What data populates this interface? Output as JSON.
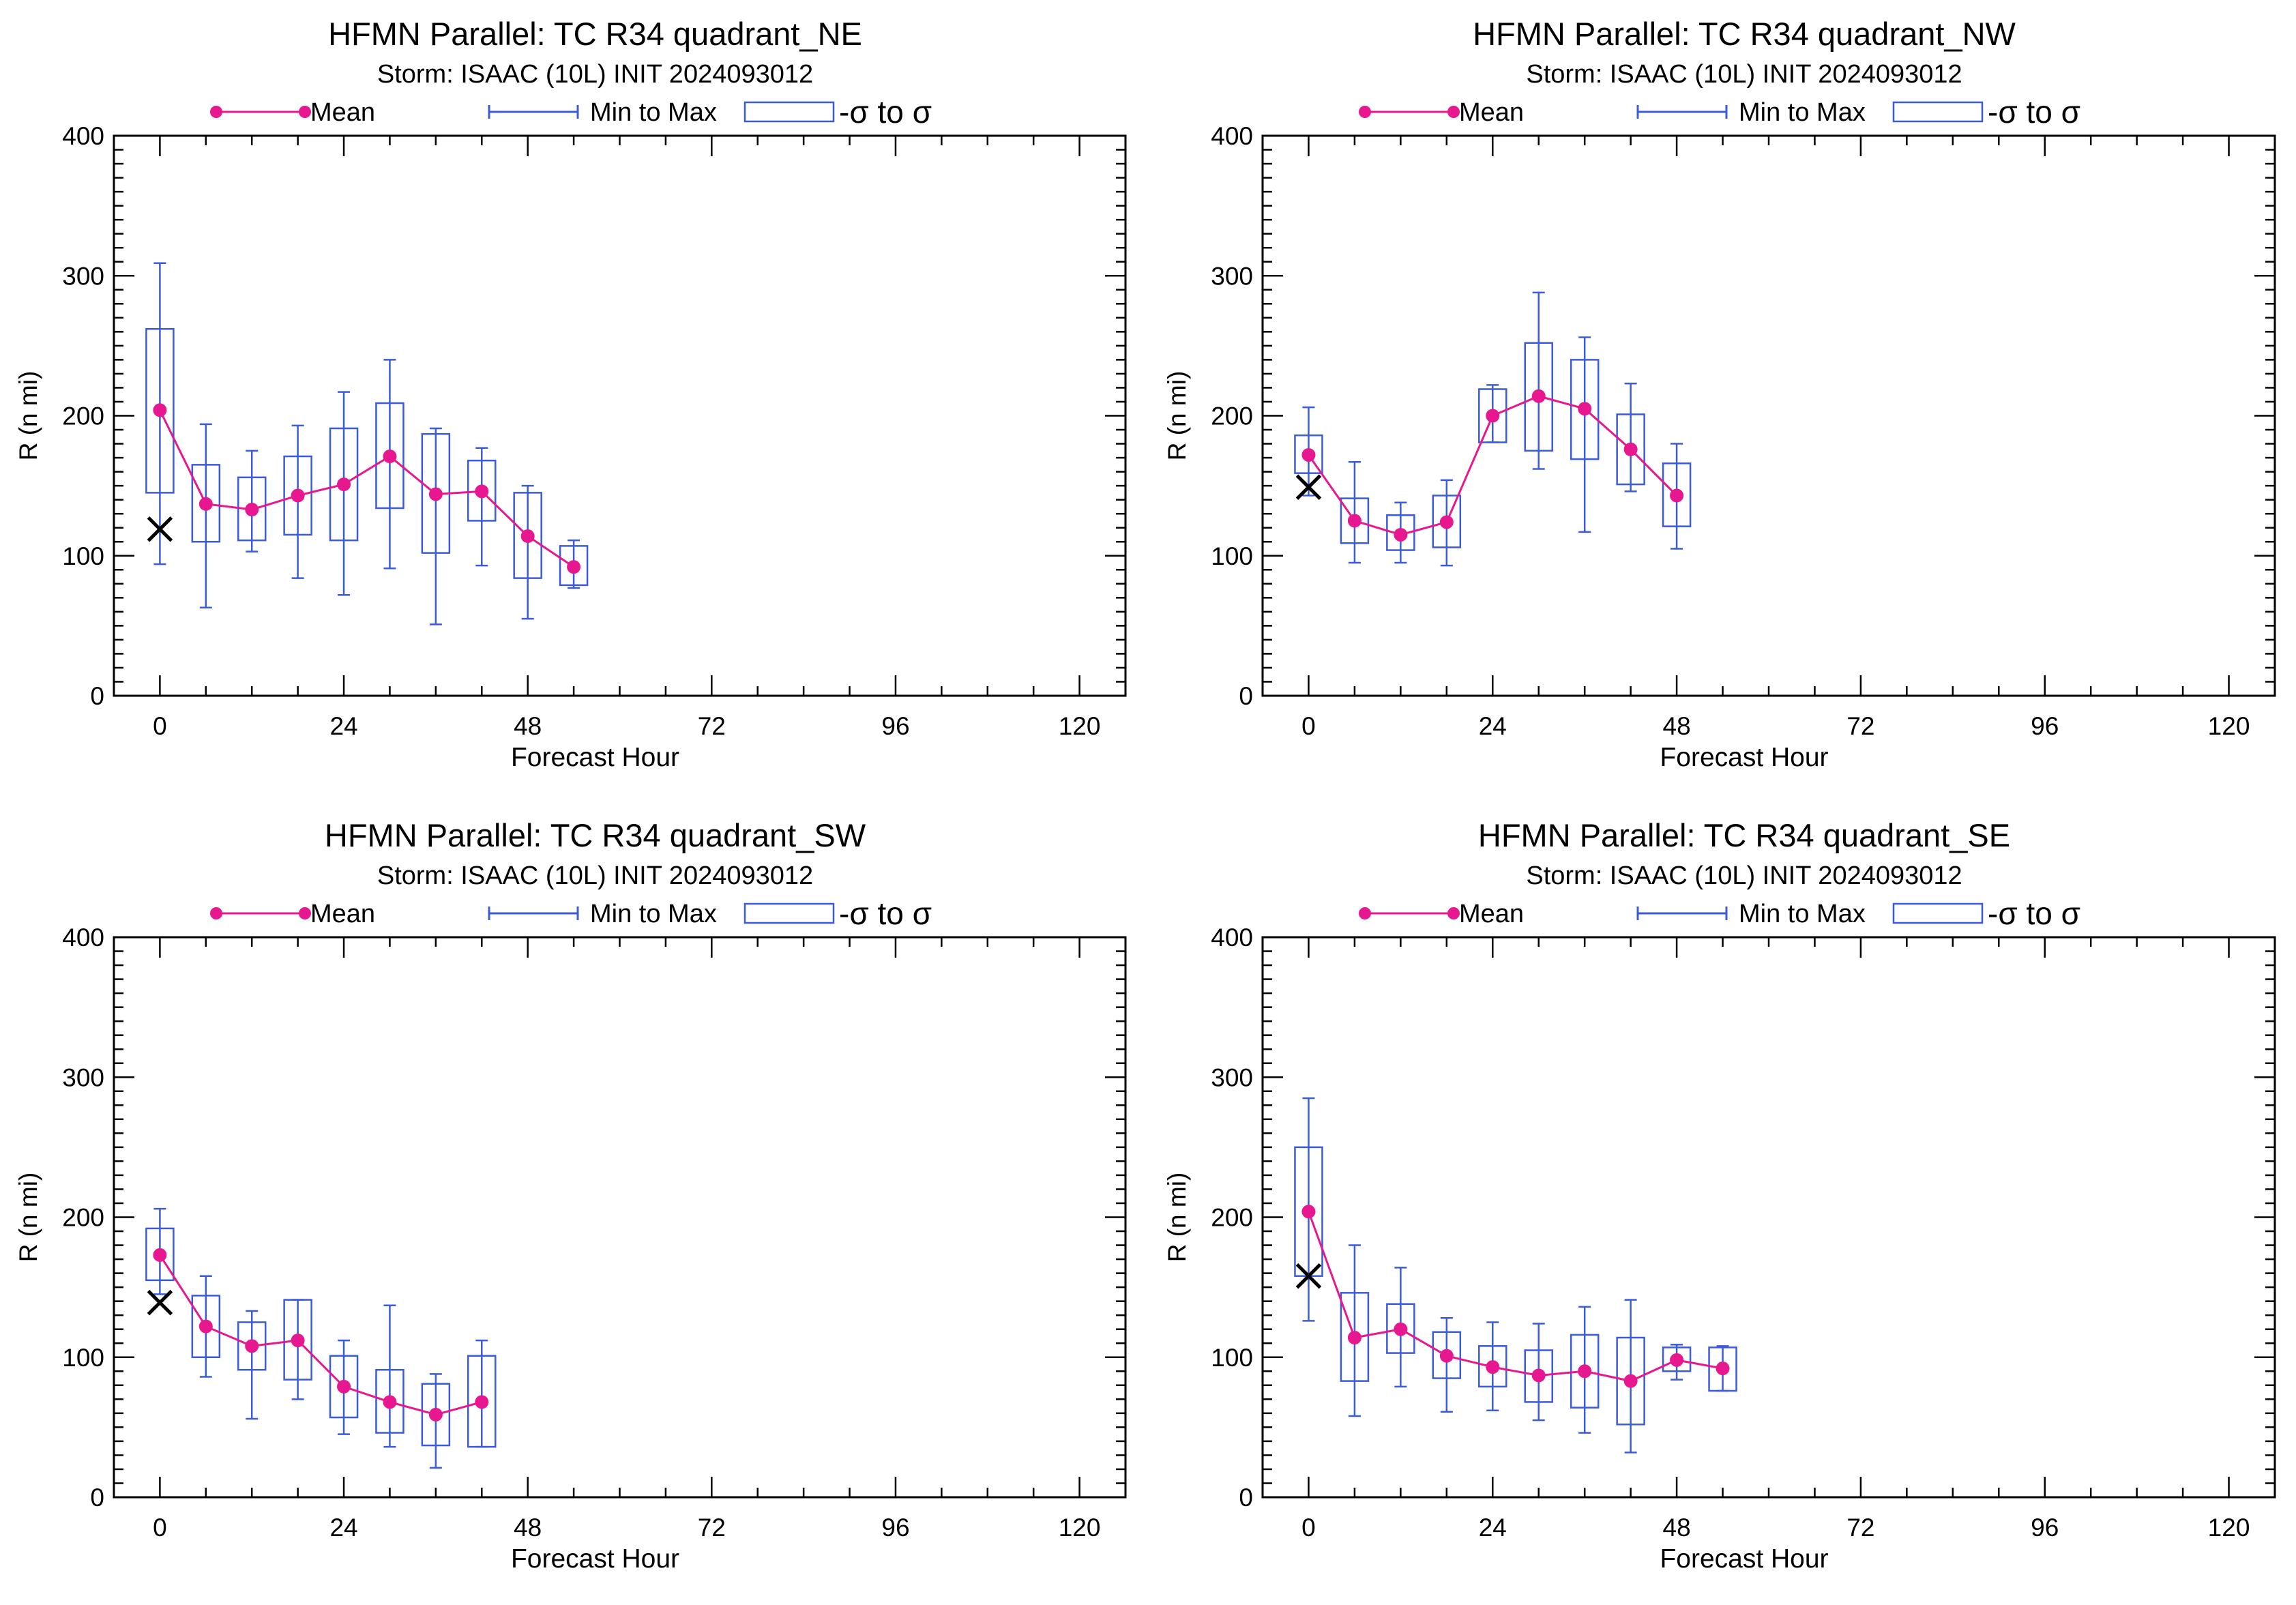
{
  "colors": {
    "mean": "#e6178f",
    "box": "#3b5bdb",
    "obs": "#000000",
    "axis": "#000000"
  },
  "legend": {
    "mean_label": "Mean",
    "minmax_label": "Min to Max",
    "sigma_label": "-σ to σ"
  },
  "chart_data": [
    {
      "type": "box",
      "title": "HFMN Parallel: TC  R34 quadrant_NE",
      "subtitle": "Storm: ISAAC (10L) INIT 2024093012",
      "xlabel": "Forecast Hour",
      "ylabel": "R (n mi)",
      "xlim": [
        -6,
        126
      ],
      "ylim": [
        0,
        400
      ],
      "xticks": [
        0,
        24,
        48,
        72,
        96,
        120
      ],
      "yticks": [
        0,
        100,
        200,
        300,
        400
      ],
      "observed": {
        "x": 0,
        "y": 119
      },
      "series": [
        {
          "x": 0,
          "min": 94,
          "max": 309,
          "lo": 145,
          "hi": 262,
          "mean": 204
        },
        {
          "x": 6,
          "min": 63,
          "max": 194,
          "lo": 110,
          "hi": 165,
          "mean": 137
        },
        {
          "x": 12,
          "min": 103,
          "max": 175,
          "lo": 111,
          "hi": 156,
          "mean": 133
        },
        {
          "x": 18,
          "min": 84,
          "max": 193,
          "lo": 115,
          "hi": 171,
          "mean": 143
        },
        {
          "x": 24,
          "min": 72,
          "max": 217,
          "lo": 111,
          "hi": 191,
          "mean": 151
        },
        {
          "x": 30,
          "min": 91,
          "max": 240,
          "lo": 134,
          "hi": 209,
          "mean": 171
        },
        {
          "x": 36,
          "min": 51,
          "max": 191,
          "lo": 102,
          "hi": 187,
          "mean": 144
        },
        {
          "x": 42,
          "min": 93,
          "max": 177,
          "lo": 125,
          "hi": 168,
          "mean": 146
        },
        {
          "x": 48,
          "min": 55,
          "max": 150,
          "lo": 84,
          "hi": 145,
          "mean": 114
        },
        {
          "x": 54,
          "min": 77,
          "max": 111,
          "lo": 79,
          "hi": 107,
          "mean": 92
        }
      ]
    },
    {
      "type": "box",
      "title": "HFMN Parallel: TC  R34 quadrant_NW",
      "subtitle": "Storm: ISAAC (10L) INIT 2024093012",
      "xlabel": "Forecast Hour",
      "ylabel": "R (n mi)",
      "xlim": [
        -6,
        126
      ],
      "ylim": [
        0,
        400
      ],
      "xticks": [
        0,
        24,
        48,
        72,
        96,
        120
      ],
      "yticks": [
        0,
        100,
        200,
        300,
        400
      ],
      "observed": {
        "x": 0,
        "y": 149
      },
      "series": [
        {
          "x": 0,
          "min": 143,
          "max": 206,
          "lo": 159,
          "hi": 186,
          "mean": 172
        },
        {
          "x": 6,
          "min": 95,
          "max": 167,
          "lo": 109,
          "hi": 141,
          "mean": 125
        },
        {
          "x": 12,
          "min": 95,
          "max": 138,
          "lo": 104,
          "hi": 129,
          "mean": 115
        },
        {
          "x": 18,
          "min": 93,
          "max": 154,
          "lo": 106,
          "hi": 143,
          "mean": 124
        },
        {
          "x": 24,
          "min": 181,
          "max": 222,
          "lo": 181,
          "hi": 219,
          "mean": 200
        },
        {
          "x": 30,
          "min": 162,
          "max": 288,
          "lo": 175,
          "hi": 252,
          "mean": 214
        },
        {
          "x": 36,
          "min": 117,
          "max": 256,
          "lo": 169,
          "hi": 240,
          "mean": 205
        },
        {
          "x": 42,
          "min": 146,
          "max": 223,
          "lo": 151,
          "hi": 201,
          "mean": 176
        },
        {
          "x": 48,
          "min": 105,
          "max": 180,
          "lo": 121,
          "hi": 166,
          "mean": 143
        }
      ]
    },
    {
      "type": "box",
      "title": "HFMN Parallel: TC  R34 quadrant_SW",
      "subtitle": "Storm: ISAAC (10L) INIT 2024093012",
      "xlabel": "Forecast Hour",
      "ylabel": "R (n mi)",
      "xlim": [
        -6,
        126
      ],
      "ylim": [
        0,
        400
      ],
      "xticks": [
        0,
        24,
        48,
        72,
        96,
        120
      ],
      "yticks": [
        0,
        100,
        200,
        300,
        400
      ],
      "observed": {
        "x": 0,
        "y": 139
      },
      "series": [
        {
          "x": 0,
          "min": 145,
          "max": 206,
          "lo": 155,
          "hi": 192,
          "mean": 173
        },
        {
          "x": 6,
          "min": 86,
          "max": 158,
          "lo": 100,
          "hi": 144,
          "mean": 122
        },
        {
          "x": 12,
          "min": 56,
          "max": 133,
          "lo": 91,
          "hi": 125,
          "mean": 108
        },
        {
          "x": 18,
          "min": 70,
          "max": 141,
          "lo": 84,
          "hi": 141,
          "mean": 112
        },
        {
          "x": 24,
          "min": 45,
          "max": 112,
          "lo": 57,
          "hi": 101,
          "mean": 79
        },
        {
          "x": 30,
          "min": 36,
          "max": 137,
          "lo": 46,
          "hi": 91,
          "mean": 68
        },
        {
          "x": 36,
          "min": 21,
          "max": 88,
          "lo": 37,
          "hi": 81,
          "mean": 59
        },
        {
          "x": 42,
          "min": 36,
          "max": 112,
          "lo": 36,
          "hi": 101,
          "mean": 68
        }
      ]
    },
    {
      "type": "box",
      "title": "HFMN Parallel: TC  R34 quadrant_SE",
      "subtitle": "Storm: ISAAC (10L) INIT 2024093012",
      "xlabel": "Forecast Hour",
      "ylabel": "R (n mi)",
      "xlim": [
        -6,
        126
      ],
      "ylim": [
        0,
        400
      ],
      "xticks": [
        0,
        24,
        48,
        72,
        96,
        120
      ],
      "yticks": [
        0,
        100,
        200,
        300,
        400
      ],
      "observed": {
        "x": 0,
        "y": 158
      },
      "series": [
        {
          "x": 0,
          "min": 126,
          "max": 285,
          "lo": 158,
          "hi": 250,
          "mean": 204
        },
        {
          "x": 6,
          "min": 58,
          "max": 180,
          "lo": 83,
          "hi": 146,
          "mean": 114
        },
        {
          "x": 12,
          "min": 79,
          "max": 164,
          "lo": 103,
          "hi": 138,
          "mean": 120
        },
        {
          "x": 18,
          "min": 61,
          "max": 128,
          "lo": 85,
          "hi": 118,
          "mean": 101
        },
        {
          "x": 24,
          "min": 62,
          "max": 125,
          "lo": 79,
          "hi": 108,
          "mean": 93
        },
        {
          "x": 30,
          "min": 55,
          "max": 124,
          "lo": 68,
          "hi": 105,
          "mean": 87
        },
        {
          "x": 36,
          "min": 46,
          "max": 136,
          "lo": 64,
          "hi": 116,
          "mean": 90
        },
        {
          "x": 42,
          "min": 32,
          "max": 141,
          "lo": 52,
          "hi": 114,
          "mean": 83
        },
        {
          "x": 48,
          "min": 84,
          "max": 109,
          "lo": 90,
          "hi": 107,
          "mean": 98
        },
        {
          "x": 54,
          "min": 76,
          "max": 108,
          "lo": 76,
          "hi": 107,
          "mean": 92
        }
      ]
    }
  ]
}
